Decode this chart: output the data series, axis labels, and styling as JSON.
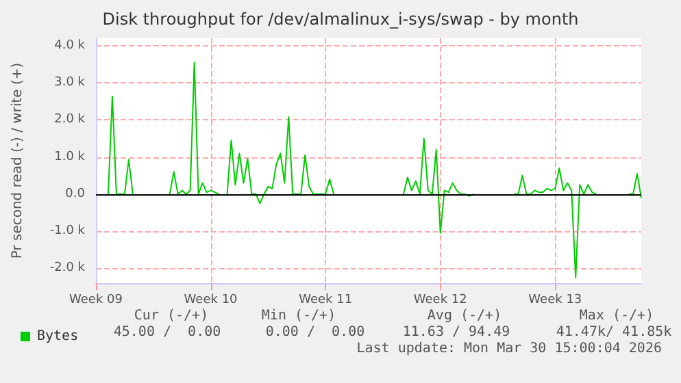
{
  "chart_data": {
    "type": "line",
    "title": "Disk throughput for /dev/almalinux_i-sys/swap - by month",
    "ylabel": "Pr second read (-) / write (+)",
    "categories": [
      "Week 09",
      null,
      null,
      null,
      null,
      null,
      null,
      null,
      null,
      null,
      null,
      null,
      null,
      null,
      null,
      null,
      null,
      null,
      null,
      null,
      null,
      null,
      null,
      null,
      null,
      null,
      null,
      null,
      "Week 10",
      null,
      null,
      null,
      null,
      null,
      null,
      null,
      null,
      null,
      null,
      null,
      null,
      null,
      null,
      null,
      null,
      null,
      null,
      null,
      null,
      null,
      null,
      null,
      null,
      null,
      null,
      null,
      "Week 11",
      null,
      null,
      null,
      null,
      null,
      null,
      null,
      null,
      null,
      null,
      null,
      null,
      null,
      null,
      null,
      null,
      null,
      null,
      null,
      null,
      null,
      null,
      null,
      null,
      null,
      null,
      null,
      "Week 12",
      null,
      null,
      null,
      null,
      null,
      null,
      null,
      null,
      null,
      null,
      null,
      null,
      null,
      null,
      null,
      null,
      null,
      null,
      null,
      null,
      null,
      null,
      null,
      null,
      null,
      null,
      null,
      "Week 13",
      null,
      null,
      null,
      null,
      null,
      null,
      null,
      null,
      null,
      null,
      null,
      null,
      null,
      null,
      null,
      null,
      null,
      null,
      null,
      null,
      null
    ],
    "series": [
      {
        "name": "Bytes",
        "color": "#00cc00",
        "values": [
          null,
          null,
          null,
          0,
          2630,
          0,
          0,
          0,
          930,
          0,
          null,
          null,
          null,
          null,
          null,
          null,
          null,
          null,
          0,
          600,
          0,
          100,
          0,
          100,
          3550,
          0,
          300,
          50,
          100,
          50,
          0,
          null,
          0,
          1450,
          250,
          1100,
          300,
          950,
          0,
          0,
          -250,
          0,
          200,
          150,
          800,
          1100,
          300,
          2080,
          0,
          0,
          0,
          1050,
          200,
          0,
          0,
          0,
          0,
          400,
          0,
          null,
          null,
          null,
          null,
          null,
          null,
          null,
          null,
          null,
          null,
          null,
          null,
          null,
          null,
          null,
          null,
          0,
          450,
          100,
          350,
          0,
          1500,
          100,
          0,
          1200,
          -1050,
          100,
          50,
          300,
          100,
          0,
          0,
          -50,
          0,
          null,
          null,
          null,
          null,
          null,
          null,
          null,
          null,
          null,
          0,
          0,
          500,
          0,
          0,
          100,
          50,
          50,
          150,
          100,
          150,
          700,
          100,
          300,
          100,
          -2250,
          250,
          0,
          250,
          50,
          0,
          null,
          null,
          null,
          null,
          null,
          null,
          null,
          0,
          0,
          550,
          -100
        ]
      }
    ],
    "ylim": [
      -2400,
      4200
    ],
    "yticks": [
      {
        "value": -2000,
        "label": "-2.0 k"
      },
      {
        "value": -1000,
        "label": "-1.0 k"
      },
      {
        "value": 0,
        "label": "0.0"
      },
      {
        "value": 1000,
        "label": "1.0 k"
      },
      {
        "value": 2000,
        "label": "2.0 k"
      },
      {
        "value": 3000,
        "label": "3.0 k"
      },
      {
        "value": 4000,
        "label": "4.0 k"
      }
    ],
    "grid": true,
    "legend": "bottom left",
    "marker": "none",
    "line_style": "solid",
    "ref_lines": [
      {
        "axis": "y",
        "value": 0,
        "color": "#000000"
      }
    ],
    "annotations": [
      "Cur (-/+)",
      "Min (-/+)",
      "Avg (-/+)",
      "Max (-/+)",
      "45.00 /  0.00",
      "0.00 /  0.00",
      "11.63 / 94.49",
      "41.47k/ 41.85k",
      "Last update: Mon Mar 30 15:00:04 2026"
    ]
  }
}
